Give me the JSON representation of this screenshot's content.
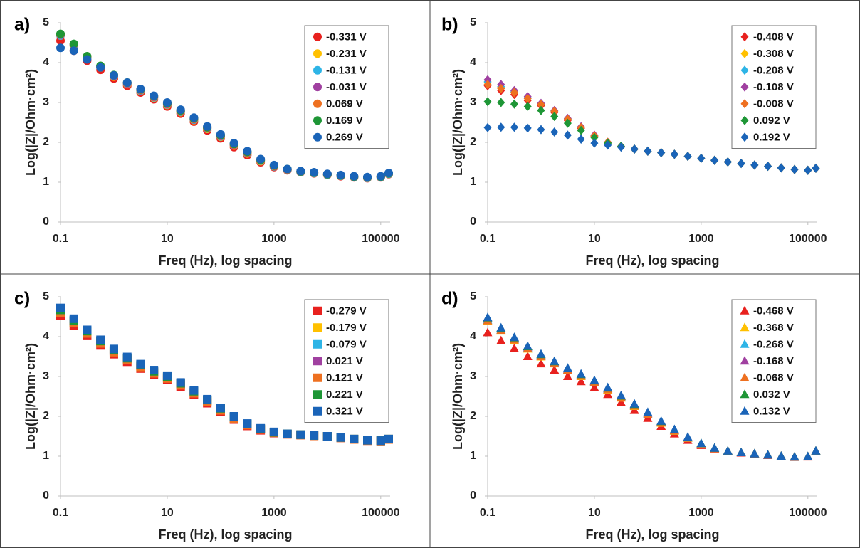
{
  "chart_data": [
    {
      "type": "scatter",
      "marker": "circle",
      "panel_label": "a)",
      "x_label": "Freq (Hz), log spacing",
      "y_label": "Log(|Z|/Ohm·cm²)",
      "log_x": true,
      "legend": "upper right",
      "xlim": [
        0.1,
        150000
      ],
      "ylim": [
        0,
        5
      ],
      "xticks": [
        0.1,
        10,
        1000,
        100000
      ],
      "yticks": [
        0,
        1,
        2,
        3,
        4,
        5
      ],
      "x": [
        0.1,
        0.178,
        0.316,
        0.562,
        1,
        1.78,
        3.16,
        5.62,
        10,
        17.8,
        31.6,
        56.2,
        100,
        178,
        316,
        562,
        1000,
        1780,
        3160,
        5620,
        10000,
        17800,
        31600,
        56200,
        100000,
        141000
      ],
      "series": [
        {
          "name": "-0.331 V",
          "color": "#e8211e",
          "values": [
            4.55,
            4.3,
            4.05,
            3.82,
            3.6,
            3.42,
            3.25,
            3.08,
            2.9,
            2.72,
            2.52,
            2.3,
            2.1,
            1.88,
            1.68,
            1.5,
            1.38,
            1.3,
            1.25,
            1.22,
            1.18,
            1.15,
            1.12,
            1.1,
            1.12,
            1.2
          ]
        },
        {
          "name": "-0.231 V",
          "color": "#ffc000",
          "values": [
            4.68,
            4.42,
            4.12,
            3.88,
            3.65,
            3.46,
            3.29,
            3.12,
            2.94,
            2.76,
            2.56,
            2.34,
            2.14,
            1.92,
            1.72,
            1.53,
            1.4,
            1.31,
            1.26,
            1.23,
            1.19,
            1.16,
            1.13,
            1.11,
            1.13,
            1.21
          ]
        },
        {
          "name": "-0.131 V",
          "color": "#2db4e6",
          "values": [
            4.68,
            4.43,
            4.13,
            3.89,
            3.66,
            3.47,
            3.3,
            3.13,
            2.95,
            2.77,
            2.57,
            2.35,
            2.15,
            1.93,
            1.73,
            1.54,
            1.4,
            1.31,
            1.26,
            1.23,
            1.19,
            1.16,
            1.13,
            1.11,
            1.13,
            1.21
          ]
        },
        {
          "name": "-0.031 V",
          "color": "#a040a0",
          "values": [
            4.7,
            4.45,
            4.15,
            3.9,
            3.67,
            3.48,
            3.31,
            3.14,
            2.96,
            2.78,
            2.58,
            2.36,
            2.16,
            1.94,
            1.74,
            1.55,
            1.41,
            1.32,
            1.27,
            1.24,
            1.2,
            1.17,
            1.14,
            1.12,
            1.14,
            1.22
          ]
        },
        {
          "name": "0.069 V",
          "color": "#ee7020",
          "values": [
            4.71,
            4.46,
            4.15,
            3.91,
            3.68,
            3.49,
            3.32,
            3.15,
            2.97,
            2.79,
            2.59,
            2.37,
            2.17,
            1.95,
            1.75,
            1.55,
            1.41,
            1.32,
            1.27,
            1.24,
            1.2,
            1.17,
            1.14,
            1.12,
            1.14,
            1.22
          ]
        },
        {
          "name": "0.169 V",
          "color": "#1e9636",
          "values": [
            4.72,
            4.47,
            4.16,
            3.92,
            3.69,
            3.5,
            3.33,
            3.16,
            2.98,
            2.8,
            2.6,
            2.38,
            2.18,
            1.96,
            1.76,
            1.56,
            1.42,
            1.33,
            1.27,
            1.24,
            1.2,
            1.17,
            1.14,
            1.12,
            1.14,
            1.22
          ]
        },
        {
          "name": "0.269 V",
          "color": "#1a64b8",
          "values": [
            4.37,
            4.3,
            4.08,
            3.88,
            3.68,
            3.5,
            3.34,
            3.17,
            3.0,
            2.82,
            2.62,
            2.4,
            2.2,
            1.98,
            1.78,
            1.58,
            1.43,
            1.33,
            1.28,
            1.25,
            1.21,
            1.18,
            1.15,
            1.13,
            1.15,
            1.23
          ]
        }
      ]
    },
    {
      "type": "scatter",
      "marker": "diamond",
      "panel_label": "b)",
      "x_label": "Freq (Hz), log spacing",
      "y_label": "Log(|Z|/Ohm·cm²)",
      "log_x": true,
      "legend": "upper right",
      "xlim": [
        0.1,
        150000
      ],
      "ylim": [
        0,
        5
      ],
      "xticks": [
        0.1,
        10,
        1000,
        100000
      ],
      "yticks": [
        0,
        1,
        2,
        3,
        4,
        5
      ],
      "x": [
        0.1,
        0.178,
        0.316,
        0.562,
        1,
        1.78,
        3.16,
        5.62,
        10,
        17.8,
        31.6,
        56.2,
        100,
        178,
        316,
        562,
        1000,
        1780,
        3160,
        5620,
        10000,
        17800,
        31600,
        56200,
        100000,
        141000
      ],
      "series": [
        {
          "name": "-0.408 V",
          "color": "#e8211e",
          "values": [
            3.42,
            3.3,
            3.2,
            3.05,
            2.92,
            2.75,
            2.55,
            2.35,
            2.15,
            2.0,
            1.9,
            1.83,
            1.78,
            1.74,
            1.7,
            1.65,
            1.6,
            1.55,
            1.51,
            1.47,
            1.43,
            1.4,
            1.36,
            1.32,
            1.3,
            1.35
          ]
        },
        {
          "name": "-0.308 V",
          "color": "#ffc000",
          "values": [
            3.5,
            3.38,
            3.25,
            3.1,
            2.95,
            2.78,
            2.58,
            2.38,
            2.17,
            2.0,
            1.9,
            1.83,
            1.78,
            1.74,
            1.7,
            1.65,
            1.6,
            1.55,
            1.51,
            1.47,
            1.43,
            1.4,
            1.36,
            1.32,
            1.3,
            1.35
          ]
        },
        {
          "name": "-0.208 V",
          "color": "#2db4e6",
          "values": [
            3.52,
            3.4,
            3.27,
            3.12,
            2.96,
            2.79,
            2.59,
            2.38,
            2.17,
            2.0,
            1.9,
            1.83,
            1.78,
            1.74,
            1.7,
            1.65,
            1.6,
            1.55,
            1.51,
            1.47,
            1.43,
            1.4,
            1.36,
            1.32,
            1.3,
            1.35
          ]
        },
        {
          "name": "-0.108 V",
          "color": "#a040a0",
          "values": [
            3.57,
            3.45,
            3.3,
            3.15,
            2.98,
            2.8,
            2.6,
            2.39,
            2.18,
            2.0,
            1.9,
            1.83,
            1.78,
            1.74,
            1.7,
            1.65,
            1.6,
            1.55,
            1.51,
            1.47,
            1.43,
            1.4,
            1.36,
            1.32,
            1.3,
            1.35
          ]
        },
        {
          "name": "-0.008 V",
          "color": "#ee7020",
          "values": [
            3.45,
            3.35,
            3.25,
            3.1,
            2.95,
            2.78,
            2.58,
            2.37,
            2.16,
            2.0,
            1.9,
            1.83,
            1.78,
            1.74,
            1.7,
            1.65,
            1.6,
            1.55,
            1.51,
            1.47,
            1.43,
            1.4,
            1.36,
            1.32,
            1.3,
            1.35
          ]
        },
        {
          "name": "0.092 V",
          "color": "#1e9636",
          "values": [
            3.02,
            3.0,
            2.96,
            2.9,
            2.8,
            2.65,
            2.48,
            2.3,
            2.12,
            1.98,
            1.9,
            1.83,
            1.78,
            1.74,
            1.7,
            1.65,
            1.6,
            1.55,
            1.51,
            1.47,
            1.43,
            1.4,
            1.36,
            1.32,
            1.3,
            1.35
          ]
        },
        {
          "name": "0.192 V",
          "color": "#1a64b8",
          "values": [
            2.37,
            2.38,
            2.38,
            2.36,
            2.32,
            2.26,
            2.18,
            2.08,
            1.98,
            1.93,
            1.88,
            1.83,
            1.78,
            1.74,
            1.7,
            1.65,
            1.6,
            1.55,
            1.51,
            1.47,
            1.43,
            1.4,
            1.36,
            1.32,
            1.3,
            1.35
          ]
        }
      ]
    },
    {
      "type": "scatter",
      "marker": "square",
      "panel_label": "c)",
      "x_label": "Freq (Hz), log spacing",
      "y_label": "Log(|Z|/Ohm·cm²)",
      "log_x": true,
      "legend": "upper right",
      "xlim": [
        0.1,
        150000
      ],
      "ylim": [
        0,
        5
      ],
      "xticks": [
        0.1,
        10,
        1000,
        100000
      ],
      "yticks": [
        0,
        1,
        2,
        3,
        4,
        5
      ],
      "x": [
        0.1,
        0.178,
        0.316,
        0.562,
        1,
        1.78,
        3.16,
        5.62,
        10,
        17.8,
        31.6,
        56.2,
        100,
        178,
        316,
        562,
        1000,
        1780,
        3160,
        5620,
        10000,
        17800,
        31600,
        56200,
        100000,
        141000
      ],
      "series": [
        {
          "name": "-0.279 V",
          "color": "#e8211e",
          "values": [
            4.52,
            4.27,
            4.02,
            3.78,
            3.56,
            3.37,
            3.2,
            3.05,
            2.92,
            2.75,
            2.55,
            2.33,
            2.12,
            1.92,
            1.76,
            1.65,
            1.58,
            1.55,
            1.53,
            1.51,
            1.49,
            1.46,
            1.42,
            1.39,
            1.38,
            1.42
          ]
        },
        {
          "name": "-0.179 V",
          "color": "#ffc000",
          "values": [
            4.62,
            4.36,
            4.1,
            3.85,
            3.63,
            3.43,
            3.26,
            3.1,
            2.97,
            2.8,
            2.6,
            2.38,
            2.17,
            1.96,
            1.79,
            1.68,
            1.6,
            1.56,
            1.54,
            1.52,
            1.5,
            1.47,
            1.43,
            1.4,
            1.39,
            1.43
          ]
        },
        {
          "name": "-0.079 V",
          "color": "#2db4e6",
          "values": [
            4.64,
            4.38,
            4.11,
            3.86,
            3.64,
            3.44,
            3.27,
            3.11,
            2.98,
            2.81,
            2.61,
            2.39,
            2.18,
            1.97,
            1.8,
            1.68,
            1.6,
            1.56,
            1.54,
            1.52,
            1.5,
            1.47,
            1.43,
            1.4,
            1.39,
            1.43
          ]
        },
        {
          "name": "0.021 V",
          "color": "#a040a0",
          "values": [
            4.66,
            4.4,
            4.13,
            3.88,
            3.65,
            3.45,
            3.28,
            3.12,
            2.99,
            2.82,
            2.62,
            2.4,
            2.19,
            1.98,
            1.8,
            1.69,
            1.6,
            1.56,
            1.54,
            1.52,
            1.5,
            1.47,
            1.43,
            1.4,
            1.39,
            1.43
          ]
        },
        {
          "name": "0.121 V",
          "color": "#ee7020",
          "values": [
            4.6,
            4.34,
            4.08,
            3.83,
            3.61,
            3.41,
            3.24,
            3.08,
            2.95,
            2.78,
            2.58,
            2.36,
            2.15,
            1.94,
            1.78,
            1.67,
            1.59,
            1.55,
            1.53,
            1.51,
            1.49,
            1.46,
            1.42,
            1.39,
            1.38,
            1.42
          ]
        },
        {
          "name": "0.221 V",
          "color": "#1e9636",
          "values": [
            4.67,
            4.41,
            4.14,
            3.89,
            3.66,
            3.46,
            3.29,
            3.13,
            3.0,
            2.83,
            2.63,
            2.41,
            2.2,
            1.99,
            1.81,
            1.69,
            1.6,
            1.56,
            1.54,
            1.52,
            1.5,
            1.47,
            1.43,
            1.4,
            1.39,
            1.43
          ]
        },
        {
          "name": "0.321 V",
          "color": "#1a64b8",
          "values": [
            4.72,
            4.45,
            4.17,
            3.92,
            3.69,
            3.49,
            3.31,
            3.16,
            3.02,
            2.85,
            2.65,
            2.43,
            2.21,
            2.0,
            1.82,
            1.7,
            1.61,
            1.56,
            1.54,
            1.52,
            1.5,
            1.47,
            1.43,
            1.4,
            1.39,
            1.43
          ]
        }
      ]
    },
    {
      "type": "scatter",
      "marker": "triangle",
      "panel_label": "d)",
      "x_label": "Freq (Hz), log spacing",
      "y_label": "Log(|Z|/Ohm·cm²)",
      "log_x": true,
      "legend": "upper right",
      "xlim": [
        0.1,
        150000
      ],
      "ylim": [
        0,
        5
      ],
      "xticks": [
        0.1,
        10,
        1000,
        100000
      ],
      "yticks": [
        0,
        1,
        2,
        3,
        4,
        5
      ],
      "x": [
        0.1,
        0.178,
        0.316,
        0.562,
        1,
        1.78,
        3.16,
        5.62,
        10,
        17.8,
        31.6,
        56.2,
        100,
        178,
        316,
        562,
        1000,
        1780,
        3160,
        5620,
        10000,
        17800,
        31600,
        56200,
        100000,
        141000
      ],
      "series": [
        {
          "name": "-0.468 V",
          "color": "#e8211e",
          "values": [
            4.1,
            3.9,
            3.7,
            3.5,
            3.32,
            3.16,
            3.0,
            2.87,
            2.72,
            2.55,
            2.35,
            2.15,
            1.95,
            1.75,
            1.56,
            1.4,
            1.27,
            1.18,
            1.12,
            1.08,
            1.05,
            1.02,
            0.99,
            0.97,
            0.98,
            1.12
          ]
        },
        {
          "name": "-0.368 V",
          "color": "#ffc000",
          "values": [
            4.38,
            4.14,
            3.9,
            3.69,
            3.49,
            3.32,
            3.15,
            3.0,
            2.84,
            2.66,
            2.46,
            2.25,
            2.04,
            1.83,
            1.63,
            1.45,
            1.3,
            1.19,
            1.13,
            1.09,
            1.06,
            1.03,
            1.0,
            0.98,
            0.99,
            1.13
          ]
        },
        {
          "name": "-0.268 V",
          "color": "#2db4e6",
          "values": [
            4.42,
            4.17,
            3.93,
            3.71,
            3.51,
            3.34,
            3.17,
            3.02,
            2.86,
            2.68,
            2.48,
            2.27,
            2.06,
            1.85,
            1.64,
            1.46,
            1.31,
            1.2,
            1.13,
            1.09,
            1.06,
            1.03,
            1.0,
            0.98,
            0.99,
            1.13
          ]
        },
        {
          "name": "-0.168 V",
          "color": "#a040a0",
          "values": [
            4.45,
            4.2,
            3.96,
            3.74,
            3.54,
            3.36,
            3.19,
            3.04,
            2.88,
            2.7,
            2.5,
            2.29,
            2.08,
            1.86,
            1.65,
            1.47,
            1.31,
            1.2,
            1.13,
            1.09,
            1.06,
            1.03,
            1.0,
            0.98,
            0.99,
            1.13
          ]
        },
        {
          "name": "-0.068 V",
          "color": "#ee7020",
          "values": [
            4.4,
            4.16,
            3.92,
            3.7,
            3.5,
            3.33,
            3.16,
            3.01,
            2.85,
            2.67,
            2.47,
            2.26,
            2.05,
            1.84,
            1.64,
            1.46,
            1.31,
            1.19,
            1.13,
            1.09,
            1.06,
            1.03,
            1.0,
            0.98,
            0.99,
            1.13
          ]
        },
        {
          "name": "0.032 V",
          "color": "#1e9636",
          "values": [
            4.47,
            4.21,
            3.97,
            3.75,
            3.55,
            3.37,
            3.2,
            3.05,
            2.89,
            2.71,
            2.51,
            2.3,
            2.09,
            1.87,
            1.66,
            1.47,
            1.32,
            1.2,
            1.13,
            1.09,
            1.06,
            1.03,
            1.0,
            0.98,
            0.99,
            1.13
          ]
        },
        {
          "name": "0.132 V",
          "color": "#1a64b8",
          "values": [
            4.48,
            4.22,
            3.98,
            3.76,
            3.56,
            3.38,
            3.21,
            3.06,
            2.9,
            2.72,
            2.52,
            2.31,
            2.1,
            1.88,
            1.67,
            1.48,
            1.32,
            1.2,
            1.13,
            1.09,
            1.06,
            1.03,
            1.0,
            0.98,
            0.99,
            1.13
          ]
        }
      ]
    }
  ]
}
